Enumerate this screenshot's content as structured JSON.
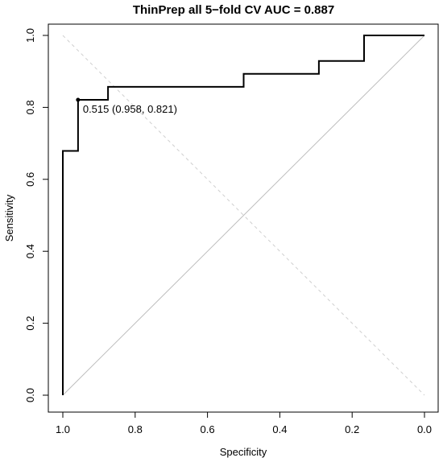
{
  "chart_data": {
    "type": "line",
    "title": "ThinPrep all 5−fold CV AUC = 0.887",
    "xlabel": "Specificity",
    "ylabel": "Sensitivity",
    "xlim": [
      1.0,
      0.0
    ],
    "ylim": [
      0.0,
      1.0
    ],
    "x_reversed": true,
    "grid": false,
    "legend": "none",
    "x_ticks": [
      1.0,
      0.8,
      0.6,
      0.4,
      0.2,
      0.0
    ],
    "x_tick_labels": [
      "1.0",
      "0.8",
      "0.6",
      "0.4",
      "0.2",
      "0.0"
    ],
    "y_ticks": [
      0.0,
      0.2,
      0.4,
      0.6,
      0.8,
      1.0
    ],
    "y_tick_labels": [
      "0.0",
      "0.2",
      "0.4",
      "0.6",
      "0.8",
      "1.0"
    ],
    "series": [
      {
        "role": "roc-curve",
        "color": "#000000",
        "x": [
          1.0,
          1.0,
          0.958,
          0.958,
          0.875,
          0.875,
          0.5,
          0.5,
          0.292,
          0.292,
          0.167,
          0.167,
          0.0
        ],
        "y": [
          0.0,
          0.679,
          0.679,
          0.821,
          0.821,
          0.857,
          0.857,
          0.893,
          0.893,
          0.929,
          0.929,
          1.0,
          1.0
        ]
      }
    ],
    "reference_lines": [
      {
        "role": "chance-diagonal",
        "color": "#bdbdbd",
        "style": "solid",
        "x": [
          1.0,
          0.0
        ],
        "y": [
          0.0,
          1.0
        ]
      },
      {
        "role": "dashed-diagonal",
        "color": "#cfcfcf",
        "style": "dashed",
        "x": [
          1.0,
          0.0
        ],
        "y": [
          1.0,
          0.0
        ]
      }
    ],
    "annotations": [
      {
        "text": "0.515 (0.958, 0.821)",
        "x": 0.958,
        "y": 0.821
      }
    ]
  }
}
